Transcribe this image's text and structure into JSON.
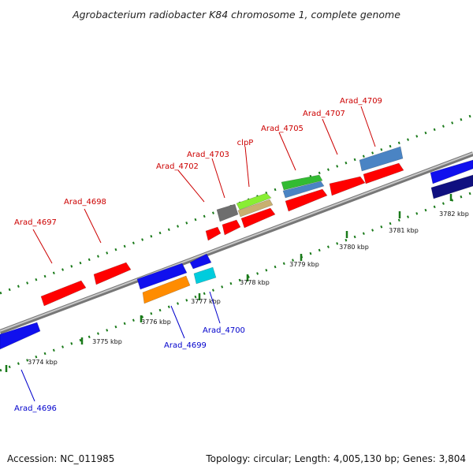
{
  "title": "Agrobacterium radiobacter K84 chromosome 1, complete genome",
  "footer": {
    "accession": "Accession: NC_011985",
    "summary": "Topology: circular; Length: 4,005,130 bp; Genes: 3,804"
  },
  "colors": {
    "forward_label": "#cc0000",
    "reverse_label": "#0000cc",
    "backbone": "#8a8a8a",
    "tick": "#1a7a1a",
    "red": "#ff0000",
    "blue": "#1010ee",
    "orange": "#ff8c00",
    "cyan": "#00ccdd",
    "gray": "#6e6e6e",
    "lime": "#88ee33",
    "tan": "#c8b070",
    "green": "#33bb33",
    "steel": "#4a84c4",
    "navy": "#101080"
  },
  "scale_ticks": [
    {
      "label": "3774 kbp"
    },
    {
      "label": "3775 kbp"
    },
    {
      "label": "3776 kbp"
    },
    {
      "label": "3777 kbp"
    },
    {
      "label": "3778 kbp"
    },
    {
      "label": "3779 kbp"
    },
    {
      "label": "3780 kbp"
    },
    {
      "label": "3781 kbp"
    },
    {
      "label": "3782 kbp"
    }
  ],
  "forward_genes": [
    {
      "label": "Arad_4697",
      "color": "red"
    },
    {
      "label": "Arad_4698",
      "color": "red"
    },
    {
      "label": "Arad_4702",
      "color": "red"
    },
    {
      "label": "Arad_4703",
      "color": "gray"
    },
    {
      "label": "clpP",
      "color": "red"
    },
    {
      "label": "Arad_4705",
      "color": "red"
    },
    {
      "label": "Arad_4707",
      "color": "red"
    },
    {
      "label": "Arad_4709",
      "color": "steel"
    }
  ],
  "reverse_genes": [
    {
      "label": "Arad_4696",
      "color": "blue"
    },
    {
      "label": "Arad_4699",
      "color": "orange"
    },
    {
      "label": "Arad_4700",
      "color": "cyan"
    }
  ]
}
